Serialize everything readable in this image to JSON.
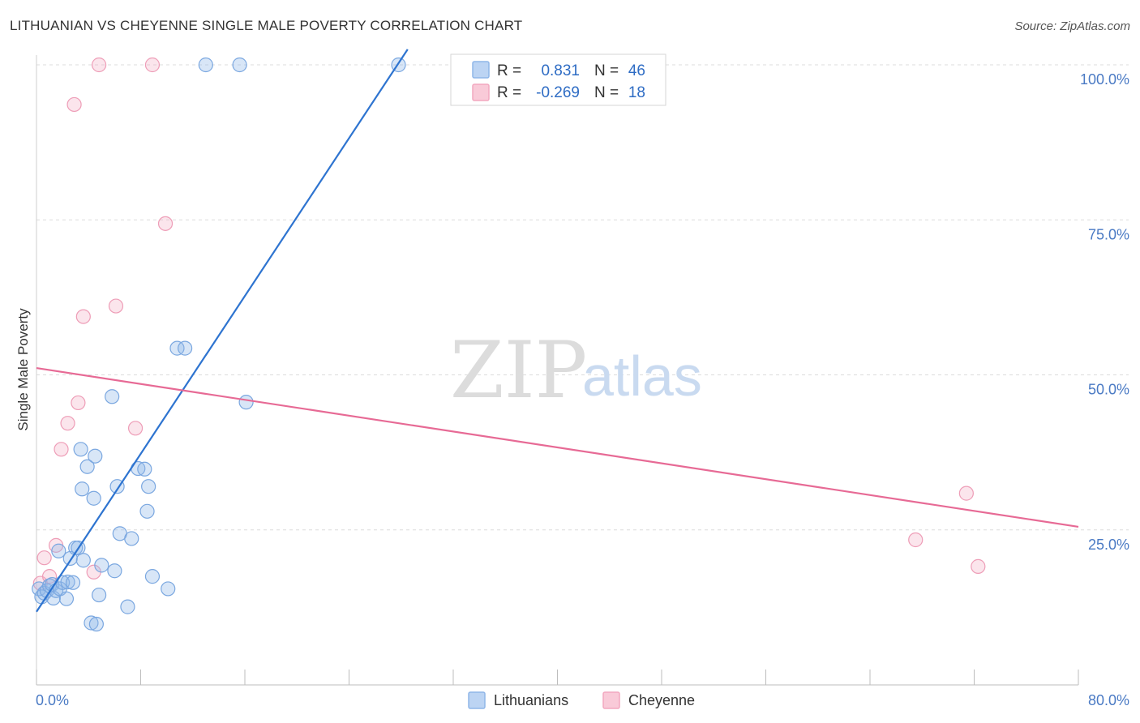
{
  "title": "LITHUANIAN VS CHEYENNE SINGLE MALE POVERTY CORRELATION CHART",
  "source": "Source: ZipAtlas.com",
  "watermark": {
    "zip": "ZIP",
    "atlas": "atlas"
  },
  "colors": {
    "blue": "#8fb6e8",
    "blue_line": "#2e74d0",
    "pink": "#f2a8bf",
    "pink_line": "#e76a95",
    "axis_text": "#4a7ac4"
  },
  "legend": {
    "rows": [
      {
        "r_label": "R =",
        "r_value": "0.831",
        "n_label": "N =",
        "n_value": "46"
      },
      {
        "r_label": "R =",
        "r_value": "-0.269",
        "n_label": "N =",
        "n_value": "18"
      }
    ]
  },
  "chart_data": {
    "type": "scatter",
    "title": "LITHUANIAN VS CHEYENNE SINGLE MALE POVERTY CORRELATION CHART",
    "ylabel": "Single Male Poverty",
    "xlim": [
      0,
      80
    ],
    "ylim": [
      0,
      100
    ],
    "x_tick_labels": [
      "0.0%",
      "80.0%"
    ],
    "y_ticks": [
      {
        "value": 100,
        "label": "100.0%"
      },
      {
        "value": 75,
        "label": "75.0%"
      },
      {
        "value": 50,
        "label": "50.0%"
      },
      {
        "value": 25,
        "label": "25.0%"
      }
    ],
    "legend_placement": "top-center",
    "series": [
      {
        "name": "Lithuanians",
        "color": "#8fb6e8",
        "trend": {
          "x": [
            0,
            28.5
          ],
          "y": [
            11.8,
            102.5
          ]
        },
        "points": [
          [
            0.2,
            15.5
          ],
          [
            0.4,
            14.2
          ],
          [
            0.6,
            14.8
          ],
          [
            0.8,
            15.2
          ],
          [
            1.0,
            16.0
          ],
          [
            1.2,
            16.2
          ],
          [
            1.3,
            14.0
          ],
          [
            1.5,
            15.2
          ],
          [
            1.7,
            21.6
          ],
          [
            1.8,
            15.5
          ],
          [
            2.0,
            16.5
          ],
          [
            2.3,
            13.9
          ],
          [
            2.4,
            16.6
          ],
          [
            2.6,
            20.4
          ],
          [
            2.8,
            16.5
          ],
          [
            3.0,
            22.1
          ],
          [
            3.2,
            22.1
          ],
          [
            3.4,
            38.0
          ],
          [
            3.5,
            31.6
          ],
          [
            3.6,
            20.1
          ],
          [
            3.9,
            35.2
          ],
          [
            4.2,
            10.0
          ],
          [
            4.4,
            30.1
          ],
          [
            4.5,
            36.9
          ],
          [
            4.6,
            9.8
          ],
          [
            4.8,
            14.5
          ],
          [
            5.0,
            19.3
          ],
          [
            6.0,
            18.4
          ],
          [
            6.2,
            32.0
          ],
          [
            6.4,
            24.4
          ],
          [
            5.8,
            46.5
          ],
          [
            7.0,
            12.6
          ],
          [
            7.3,
            23.6
          ],
          [
            7.8,
            34.9
          ],
          [
            8.3,
            34.8
          ],
          [
            8.5,
            28.0
          ],
          [
            8.6,
            32.0
          ],
          [
            8.9,
            17.5
          ],
          [
            10.1,
            15.5
          ],
          [
            10.8,
            54.3
          ],
          [
            11.4,
            54.3
          ],
          [
            13.0,
            100.0
          ],
          [
            15.6,
            100.0
          ],
          [
            16.1,
            45.6
          ],
          [
            27.8,
            100.0
          ],
          [
            32.4,
            100.0
          ]
        ]
      },
      {
        "name": "Cheyenne",
        "color": "#f2a8bf",
        "trend": {
          "x": [
            0,
            80
          ],
          "y": [
            51.1,
            25.5
          ]
        },
        "points": [
          [
            0.3,
            16.4
          ],
          [
            0.6,
            20.5
          ],
          [
            1.0,
            17.5
          ],
          [
            1.5,
            22.5
          ],
          [
            1.9,
            38.0
          ],
          [
            2.4,
            42.2
          ],
          [
            2.9,
            93.6
          ],
          [
            3.2,
            45.5
          ],
          [
            3.6,
            59.4
          ],
          [
            4.4,
            18.2
          ],
          [
            4.8,
            100.0
          ],
          [
            6.1,
            61.1
          ],
          [
            7.6,
            41.4
          ],
          [
            8.9,
            100.0
          ],
          [
            9.9,
            74.4
          ],
          [
            67.5,
            23.4
          ],
          [
            71.4,
            30.9
          ],
          [
            72.3,
            19.1
          ]
        ]
      }
    ]
  }
}
